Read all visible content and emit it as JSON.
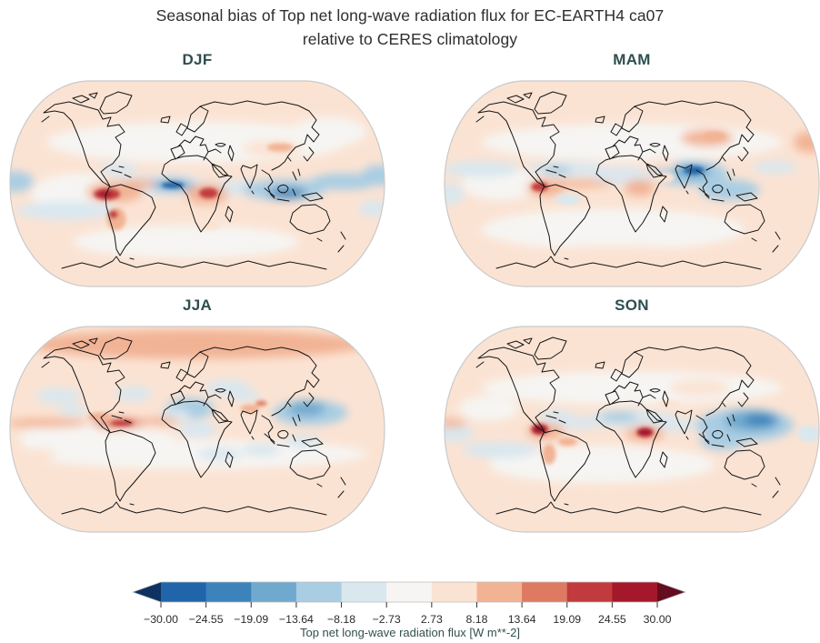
{
  "figure": {
    "title": "Seasonal bias of Top net long-wave radiation flux for EC-EARTH4 ca07\nrelative to CERES climatology"
  },
  "chart_data": {
    "type": "heatmap",
    "subtype": "filled-contour-global-maps",
    "projection": "Robinson",
    "variable": "Top net long-wave radiation flux",
    "model": "EC-EARTH4 ca07",
    "reference": "CERES climatology",
    "units": "W m**-2",
    "panels": [
      {
        "label": "DJF",
        "base_value": 4,
        "approx_regions": [
          [
            0.5,
            0.3,
            0.4,
            0.1,
            0
          ],
          [
            0.18,
            0.55,
            0.12,
            0.1,
            0
          ],
          [
            0.47,
            0.78,
            0.3,
            0.08,
            0
          ],
          [
            0.85,
            0.25,
            0.1,
            0.07,
            0
          ],
          [
            0.3,
            0.12,
            0.1,
            0.05,
            7
          ],
          [
            0.72,
            0.12,
            0.12,
            0.05,
            7
          ],
          [
            0.4,
            0.505,
            0.13,
            0.05,
            -8
          ],
          [
            0.6,
            0.52,
            0.09,
            0.035,
            -6
          ],
          [
            0.73,
            0.53,
            0.11,
            0.05,
            -12
          ],
          [
            0.89,
            0.49,
            0.09,
            0.04,
            -10
          ],
          [
            0.985,
            0.46,
            0.05,
            0.05,
            -13
          ],
          [
            0.015,
            0.49,
            0.05,
            0.05,
            -13
          ],
          [
            0.15,
            0.63,
            0.13,
            0.045,
            -5
          ],
          [
            0.29,
            0.43,
            0.05,
            0.03,
            -5
          ],
          [
            0.97,
            0.62,
            0.04,
            0.04,
            -6
          ],
          [
            0.28,
            0.54,
            0.075,
            0.05,
            10
          ],
          [
            0.35,
            0.5,
            0.06,
            0.02,
            12
          ],
          [
            0.525,
            0.55,
            0.055,
            0.05,
            12
          ],
          [
            0.7,
            0.33,
            0.08,
            0.04,
            7
          ],
          [
            0.6,
            0.64,
            0.03,
            0.02,
            8
          ],
          [
            0.8,
            0.68,
            0.04,
            0.03,
            7
          ],
          [
            0.53,
            0.7,
            0.035,
            0.025,
            8
          ],
          [
            0.435,
            0.507,
            0.055,
            0.027,
            -17
          ],
          [
            0.435,
            0.507,
            0.03,
            0.015,
            -26
          ],
          [
            0.74,
            0.545,
            0.05,
            0.025,
            -22
          ],
          [
            0.26,
            0.55,
            0.035,
            0.028,
            22
          ],
          [
            0.255,
            0.55,
            0.018,
            0.014,
            28
          ],
          [
            0.285,
            0.67,
            0.025,
            0.055,
            10
          ],
          [
            0.277,
            0.648,
            0.013,
            0.02,
            20
          ],
          [
            0.53,
            0.545,
            0.025,
            0.025,
            20
          ],
          [
            0.72,
            0.325,
            0.035,
            0.02,
            12
          ]
        ]
      },
      {
        "label": "MAM",
        "base_value": 4,
        "approx_regions": [
          [
            0.5,
            0.3,
            0.4,
            0.09,
            0
          ],
          [
            0.45,
            0.72,
            0.35,
            0.1,
            0
          ],
          [
            0.15,
            0.5,
            0.1,
            0.08,
            0
          ],
          [
            0.5,
            0.12,
            0.35,
            0.06,
            6
          ],
          [
            0.45,
            0.85,
            0.3,
            0.05,
            6
          ],
          [
            0.1,
            0.43,
            0.1,
            0.04,
            -7
          ],
          [
            0.33,
            0.43,
            0.11,
            0.035,
            -7
          ],
          [
            0.47,
            0.46,
            0.08,
            0.04,
            -7
          ],
          [
            0.655,
            0.45,
            0.1,
            0.06,
            -10
          ],
          [
            0.76,
            0.53,
            0.08,
            0.05,
            -9
          ],
          [
            0.015,
            0.55,
            0.04,
            0.05,
            -7
          ],
          [
            0.88,
            0.42,
            0.06,
            0.03,
            -6
          ],
          [
            0.33,
            0.575,
            0.035,
            0.025,
            -7
          ],
          [
            0.27,
            0.52,
            0.05,
            0.04,
            12
          ],
          [
            0.36,
            0.5,
            0.09,
            0.018,
            11
          ],
          [
            0.52,
            0.52,
            0.04,
            0.04,
            10
          ],
          [
            0.585,
            0.47,
            0.03,
            0.025,
            8
          ],
          [
            0.7,
            0.28,
            0.07,
            0.04,
            9
          ],
          [
            0.58,
            0.4,
            0.04,
            0.03,
            7
          ],
          [
            0.97,
            0.3,
            0.04,
            0.05,
            9
          ],
          [
            0.3,
            0.435,
            0.04,
            0.02,
            -11
          ],
          [
            0.66,
            0.44,
            0.05,
            0.035,
            -19
          ],
          [
            0.665,
            0.435,
            0.027,
            0.02,
            -27
          ],
          [
            0.255,
            0.515,
            0.022,
            0.022,
            24
          ],
          [
            0.72,
            0.27,
            0.03,
            0.02,
            13
          ]
        ]
      },
      {
        "label": "JJA",
        "base_value": 4,
        "approx_regions": [
          [
            0.5,
            0.62,
            0.45,
            0.07,
            0
          ],
          [
            0.15,
            0.55,
            0.12,
            0.08,
            0
          ],
          [
            0.35,
            0.57,
            0.1,
            0.07,
            0
          ],
          [
            0.5,
            0.09,
            0.45,
            0.07,
            9
          ],
          [
            0.33,
            0.075,
            0.1,
            0.04,
            12
          ],
          [
            0.75,
            0.1,
            0.12,
            0.04,
            11
          ],
          [
            0.45,
            0.78,
            0.25,
            0.06,
            6
          ],
          [
            0.93,
            0.55,
            0.05,
            0.04,
            8
          ],
          [
            0.075,
            0.62,
            0.05,
            0.03,
            8
          ],
          [
            0.48,
            0.4,
            0.065,
            0.05,
            -9
          ],
          [
            0.44,
            0.43,
            0.04,
            0.03,
            -7
          ],
          [
            0.58,
            0.3,
            0.06,
            0.04,
            -6
          ],
          [
            0.63,
            0.34,
            0.04,
            0.025,
            -8
          ],
          [
            0.8,
            0.42,
            0.1,
            0.06,
            -10
          ],
          [
            0.13,
            0.34,
            0.06,
            0.04,
            -7
          ],
          [
            0.33,
            0.33,
            0.05,
            0.035,
            -7
          ],
          [
            0.17,
            0.41,
            0.04,
            0.025,
            -5
          ],
          [
            0.56,
            0.62,
            0.06,
            0.03,
            -4
          ],
          [
            0.67,
            0.6,
            0.05,
            0.03,
            -4
          ],
          [
            0.78,
            0.56,
            0.05,
            0.03,
            -6
          ],
          [
            0.5,
            0.5,
            0.05,
            0.04,
            -6
          ],
          [
            0.1,
            0.47,
            0.11,
            0.022,
            13
          ],
          [
            0.29,
            0.47,
            0.07,
            0.022,
            15
          ],
          [
            0.4,
            0.46,
            0.05,
            0.018,
            11
          ],
          [
            0.24,
            0.44,
            0.03,
            0.02,
            12
          ],
          [
            0.64,
            0.4,
            0.025,
            0.02,
            11
          ],
          [
            0.79,
            0.4,
            0.05,
            0.035,
            -15
          ],
          [
            0.3,
            0.47,
            0.03,
            0.013,
            21
          ],
          [
            0.67,
            0.375,
            0.015,
            0.013,
            14
          ]
        ]
      },
      {
        "label": "SON",
        "base_value": 4,
        "approx_regions": [
          [
            0.5,
            0.3,
            0.4,
            0.08,
            0
          ],
          [
            0.42,
            0.67,
            0.3,
            0.09,
            0
          ],
          [
            0.12,
            0.4,
            0.08,
            0.06,
            0
          ],
          [
            0.5,
            0.1,
            0.4,
            0.06,
            6
          ],
          [
            0.45,
            0.85,
            0.3,
            0.05,
            6
          ],
          [
            0.5,
            0.45,
            0.12,
            0.04,
            -8
          ],
          [
            0.36,
            0.47,
            0.06,
            0.03,
            -7
          ],
          [
            0.62,
            0.48,
            0.06,
            0.03,
            -7
          ],
          [
            0.8,
            0.48,
            0.13,
            0.08,
            -9
          ],
          [
            0.74,
            0.56,
            0.06,
            0.04,
            -9
          ],
          [
            0.03,
            0.52,
            0.05,
            0.04,
            -7
          ],
          [
            0.15,
            0.6,
            0.1,
            0.04,
            -5
          ],
          [
            0.3,
            0.44,
            0.05,
            0.03,
            -6
          ],
          [
            0.97,
            0.52,
            0.03,
            0.04,
            -8
          ],
          [
            0.27,
            0.51,
            0.05,
            0.04,
            12
          ],
          [
            0.535,
            0.52,
            0.05,
            0.04,
            12
          ],
          [
            0.28,
            0.62,
            0.018,
            0.05,
            13
          ],
          [
            0.33,
            0.56,
            0.025,
            0.02,
            11
          ],
          [
            0.68,
            0.3,
            0.08,
            0.04,
            7
          ],
          [
            0.02,
            0.47,
            0.04,
            0.02,
            13
          ],
          [
            0.6,
            0.38,
            0.03,
            0.02,
            8
          ],
          [
            0.465,
            0.44,
            0.05,
            0.025,
            -13
          ],
          [
            0.82,
            0.46,
            0.075,
            0.05,
            -15
          ],
          [
            0.84,
            0.455,
            0.04,
            0.03,
            -24
          ],
          [
            0.255,
            0.5,
            0.022,
            0.025,
            26
          ],
          [
            0.535,
            0.515,
            0.022,
            0.022,
            26
          ]
        ]
      }
    ],
    "colorbar": {
      "label": "Top net long-wave radiation flux [W m**-2]",
      "ticks": [
        "−30.00",
        "−24.55",
        "−19.09",
        "−13.64",
        "−8.18",
        "−2.73",
        "2.73",
        "8.18",
        "13.64",
        "19.09",
        "24.55",
        "30.00"
      ],
      "tick_values": [
        -30.0,
        -24.55,
        -19.09,
        -13.64,
        -8.18,
        -2.73,
        2.73,
        8.18,
        13.64,
        19.09,
        24.55,
        30.0
      ],
      "segment_colors": [
        "#2065a9",
        "#3d83bb",
        "#6fa9ce",
        "#a9cde3",
        "#d9e7ef",
        "#f6f5f3",
        "#fbe3d3",
        "#f2b394",
        "#de7a61",
        "#c13a3d",
        "#a5182b"
      ],
      "under_color": "#0d3161",
      "over_color": "#640c20",
      "extend": "both",
      "orientation": "horizontal"
    },
    "legend_position": "bottom",
    "grid": false
  }
}
